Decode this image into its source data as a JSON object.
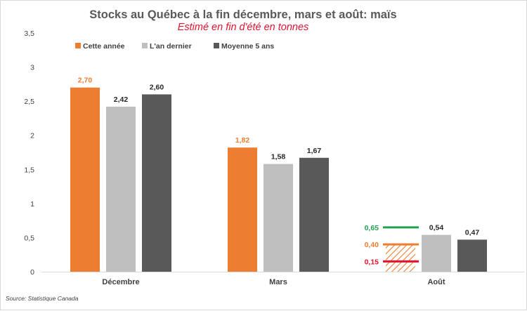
{
  "chart_data": {
    "type": "bar",
    "title": "Stocks au Québec à la fin décembre, mars et août: maïs",
    "subtitle": "Estimé en fin d'été en tonnes",
    "categories": [
      "Décembre",
      "Mars",
      "Août"
    ],
    "ylim": [
      0,
      3.5
    ],
    "yticks": [
      "0",
      "0,5",
      "1",
      "1,5",
      "2",
      "2,5",
      "3",
      "3,5"
    ],
    "ytick_values": [
      0,
      0.5,
      1,
      1.5,
      2,
      2.5,
      3,
      3.5
    ],
    "grid": false,
    "legend_position": "top-left",
    "series": [
      {
        "name": "Cette année",
        "values": [
          2.7,
          1.82,
          null
        ],
        "labels": [
          "2,70",
          "1,82",
          ""
        ],
        "color": "#ed7d31"
      },
      {
        "name": "L'an dernier",
        "values": [
          2.42,
          1.58,
          0.54
        ],
        "labels": [
          "2,42",
          "1,58",
          "0,54"
        ],
        "color": "#bfbfbf"
      },
      {
        "name": "Moyenne 5 ans",
        "values": [
          2.6,
          1.67,
          0.47
        ],
        "labels": [
          "2,60",
          "1,67",
          "0,47"
        ],
        "color": "#595959"
      }
    ],
    "estimates": {
      "category": "Août",
      "hatched_value": 0.4,
      "lines": [
        {
          "value": 0.65,
          "label": "0,65",
          "color": "#22a150"
        },
        {
          "value": 0.4,
          "label": "0,40",
          "color": "#ed7d31"
        },
        {
          "value": 0.15,
          "label": "0,15",
          "color": "#e8112d"
        }
      ]
    },
    "source": "Source: Statistique Canada"
  }
}
